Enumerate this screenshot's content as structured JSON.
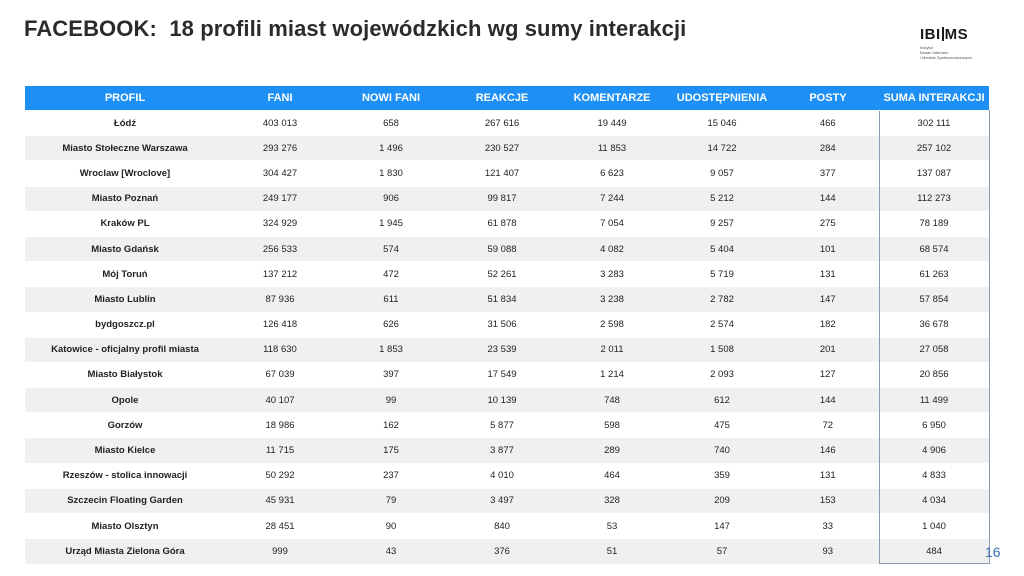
{
  "header": {
    "title": "FACEBOOK:  18 profili miast wojewódzkich wg sumy interakcji",
    "logo_left": "IBI",
    "logo_right": "MS",
    "logo_sub": [
      "Instytut",
      "Badań Internetu",
      "i Mediów Społecznościowych"
    ]
  },
  "table": {
    "columns": [
      "PROFIL",
      "FANI",
      "NOWI FANI",
      "REAKCJE",
      "KOMENTARZE",
      "UDOSTĘPNIENIA",
      "POSTY",
      "SUMA INTERAKCJI"
    ],
    "rows": [
      [
        "Łódź",
        "403 013",
        "658",
        "267 616",
        "19 449",
        "15 046",
        "466",
        "302 111"
      ],
      [
        "Miasto Stołeczne Warszawa",
        "293 276",
        "1 496",
        "230 527",
        "11 853",
        "14 722",
        "284",
        "257 102"
      ],
      [
        "Wroclaw [Wroclove]",
        "304 427",
        "1 830",
        "121 407",
        "6 623",
        "9 057",
        "377",
        "137 087"
      ],
      [
        "Miasto Poznań",
        "249 177",
        "906",
        "99 817",
        "7 244",
        "5 212",
        "144",
        "112 273"
      ],
      [
        "Kraków PL",
        "324 929",
        "1 945",
        "61 878",
        "7 054",
        "9 257",
        "275",
        "78 189"
      ],
      [
        "Miasto Gdańsk",
        "256 533",
        "574",
        "59 088",
        "4 082",
        "5 404",
        "101",
        "68 574"
      ],
      [
        "Mój Toruń",
        "137 212",
        "472",
        "52 261",
        "3 283",
        "5 719",
        "131",
        "61 263"
      ],
      [
        "Miasto Lublin",
        "87 936",
        "611",
        "51 834",
        "3 238",
        "2 782",
        "147",
        "57 854"
      ],
      [
        "bydgoszcz.pl",
        "126 418",
        "626",
        "31 506",
        "2 598",
        "2 574",
        "182",
        "36 678"
      ],
      [
        "Katowice - oficjalny profil miasta",
        "118 630",
        "1 853",
        "23 539",
        "2 011",
        "1 508",
        "201",
        "27 058"
      ],
      [
        "Miasto Białystok",
        "67 039",
        "397",
        "17 549",
        "1 214",
        "2 093",
        "127",
        "20 856"
      ],
      [
        "Opole",
        "40 107",
        "99",
        "10 139",
        "748",
        "612",
        "144",
        "11 499"
      ],
      [
        "Gorzów",
        "18 986",
        "162",
        "5 877",
        "598",
        "475",
        "72",
        "6 950"
      ],
      [
        "Miasto Kielce",
        "11 715",
        "175",
        "3 877",
        "289",
        "740",
        "146",
        "4 906"
      ],
      [
        "Rzeszów - stolica innowacji",
        "50 292",
        "237",
        "4 010",
        "464",
        "359",
        "131",
        "4 833"
      ],
      [
        "Szczecin Floating Garden",
        "45 931",
        "79",
        "3 497",
        "328",
        "209",
        "153",
        "4 034"
      ],
      [
        "Miasto Olsztyn",
        "28 451",
        "90",
        "840",
        "53",
        "147",
        "33",
        "1 040"
      ],
      [
        "Urząd Miasta Zielona Góra",
        "999",
        "43",
        "376",
        "51",
        "57",
        "93",
        "484"
      ]
    ]
  },
  "footer": {
    "page_number": "16"
  },
  "colors": {
    "header_bg": "#1e90f5",
    "stripe": "#f0f0f0",
    "title": "#2b2b2b",
    "page_number": "#3a6fb0"
  }
}
